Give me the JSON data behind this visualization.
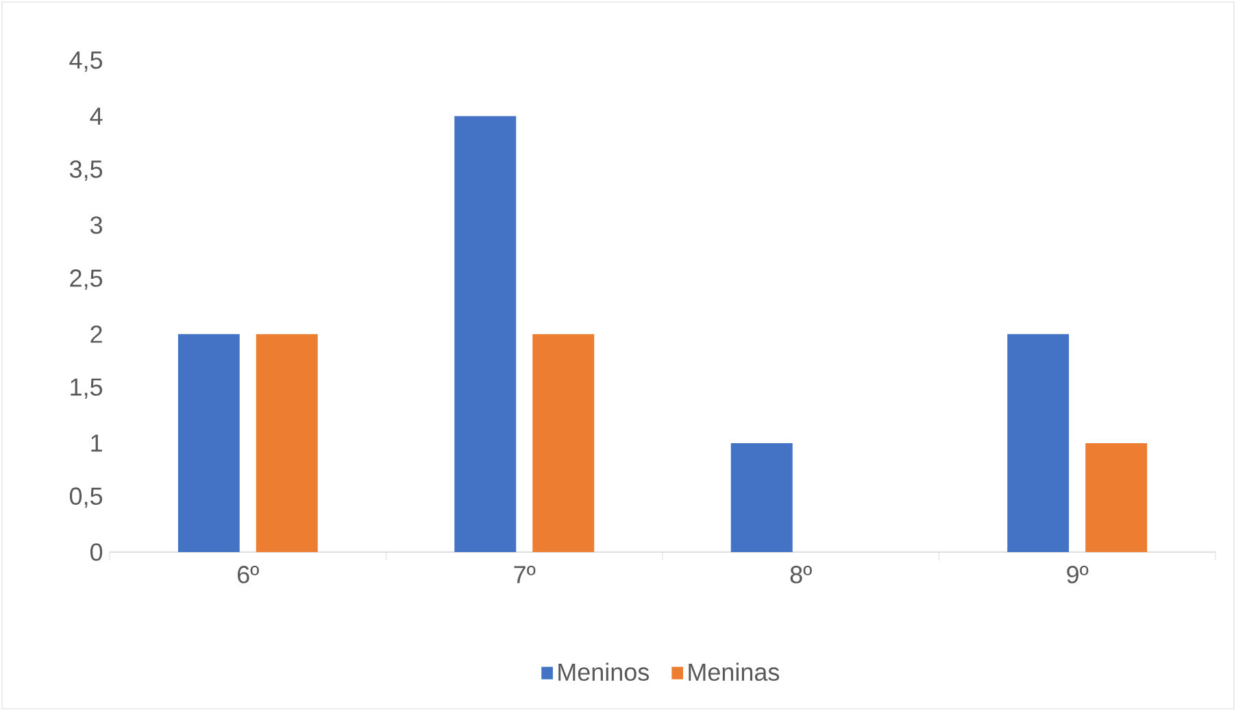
{
  "chart_data": {
    "type": "bar",
    "categories": [
      "6º",
      "7º",
      "8º",
      "9º"
    ],
    "series": [
      {
        "name": "Meninos",
        "color": "#4472c4",
        "values": [
          2,
          4,
          1,
          2
        ]
      },
      {
        "name": "Meninas",
        "color": "#ed7d31",
        "values": [
          2,
          2,
          0,
          1
        ]
      }
    ],
    "ylim": [
      0,
      4.5
    ],
    "yticks": [
      0,
      {
        "value": 0.5,
        "label": "0,5"
      },
      1,
      {
        "value": 1.5,
        "label": "1,5"
      },
      2,
      {
        "value": 2.5,
        "label": "2,5"
      },
      3,
      {
        "value": 3.5,
        "label": "3,5"
      },
      4,
      {
        "value": 4.5,
        "label": "4,5"
      }
    ],
    "legend": "bottom"
  }
}
